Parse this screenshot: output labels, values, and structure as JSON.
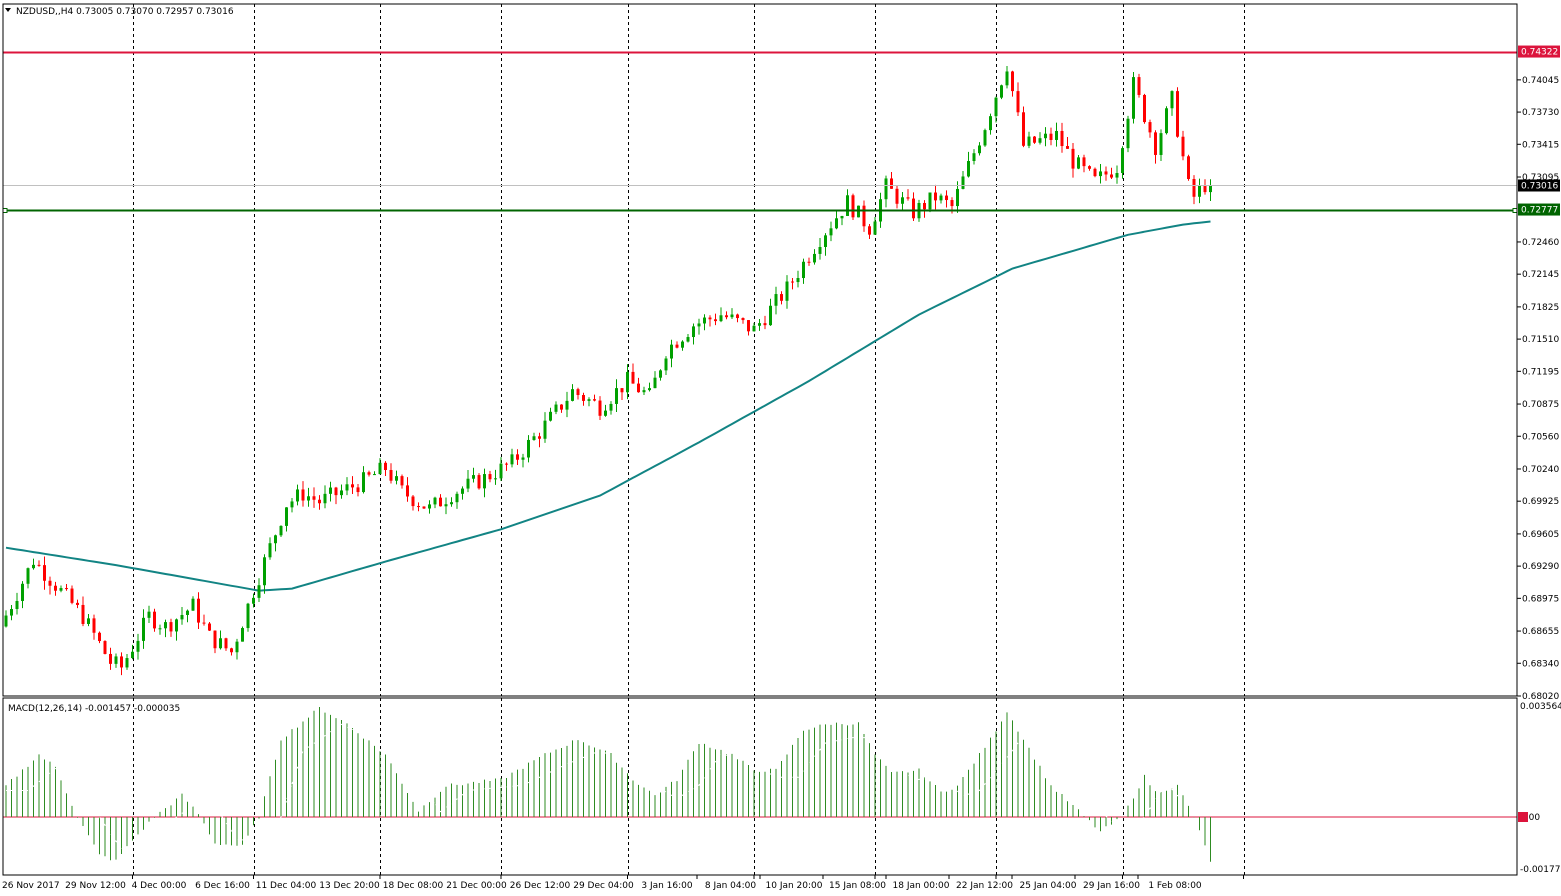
{
  "header": {
    "symbol_line": "NZDUSD,,H4  0.73005 0.73070 0.72957 0.73016"
  },
  "macd_header": "MACD(12,26,14) -0.001457 -0.000035",
  "colors": {
    "bull_candle": "#00a000",
    "bear_candle": "#ff0000",
    "ma_line": "#128484",
    "resistance_line": "#dc143c",
    "support_line": "#006400",
    "macd_hist": "#2e8b22",
    "macd_signal": "#dc143c",
    "grid": "#000000"
  },
  "chart_data": {
    "type": "candlestick",
    "symbol": "NZDUSD",
    "timeframe": "H4",
    "ylim": [
      0.6802,
      0.7465
    ],
    "y_ticks": [
      "0.74045",
      "0.73730",
      "0.73415",
      "0.73095",
      "0.72460",
      "0.72145",
      "0.71825",
      "0.71510",
      "0.71195",
      "0.70875",
      "0.70560",
      "0.70240",
      "0.69925",
      "0.69605",
      "0.69290",
      "0.68975",
      "0.68655",
      "0.68340",
      "0.68020"
    ],
    "x_ticks": [
      "26 Nov 2017",
      "29 Nov 12:00",
      "4 Dec 00:00",
      "6 Dec 16:00",
      "11 Dec 04:00",
      "13 Dec 20:00",
      "18 Dec 08:00",
      "21 Dec 00:00",
      "26 Dec 12:00",
      "29 Dec 04:00",
      "3 Jan 16:00",
      "8 Jan 04:00",
      "10 Jan 20:00",
      "15 Jan 08:00",
      "18 Jan 00:00",
      "22 Jan 12:00",
      "25 Jan 04:00",
      "29 Jan 16:00",
      "1 Feb 08:00"
    ],
    "n_bars": 220,
    "vertical_grid_bars": [
      23,
      45,
      68,
      90,
      113,
      136,
      158,
      180,
      203,
      225
    ],
    "price_path": [
      [
        0,
        0.687
      ],
      [
        6,
        0.6935
      ],
      [
        15,
        0.688
      ],
      [
        20,
        0.6835
      ],
      [
        22,
        0.683
      ],
      [
        27,
        0.688
      ],
      [
        30,
        0.687
      ],
      [
        35,
        0.689
      ],
      [
        38,
        0.686
      ],
      [
        42,
        0.6845
      ],
      [
        46,
        0.6905
      ],
      [
        52,
        0.699
      ],
      [
        55,
        0.7
      ],
      [
        58,
        0.6992
      ],
      [
        66,
        0.7012
      ],
      [
        70,
        0.7025
      ],
      [
        73,
        0.7002
      ],
      [
        78,
        0.6985
      ],
      [
        82,
        0.7
      ],
      [
        88,
        0.7015
      ],
      [
        93,
        0.703
      ],
      [
        98,
        0.706
      ],
      [
        104,
        0.71
      ],
      [
        109,
        0.7085
      ],
      [
        114,
        0.711
      ],
      [
        118,
        0.7095
      ],
      [
        121,
        0.714
      ],
      [
        126,
        0.7165
      ],
      [
        131,
        0.7175
      ],
      [
        137,
        0.716
      ],
      [
        143,
        0.72
      ],
      [
        149,
        0.725
      ],
      [
        154,
        0.7285
      ],
      [
        158,
        0.726
      ],
      [
        161,
        0.73
      ],
      [
        166,
        0.7275
      ],
      [
        170,
        0.729
      ],
      [
        173,
        0.728
      ],
      [
        176,
        0.732
      ],
      [
        179,
        0.736
      ],
      [
        183,
        0.742
      ],
      [
        186,
        0.734
      ],
      [
        192,
        0.735
      ],
      [
        195,
        0.7325
      ],
      [
        199,
        0.7305
      ],
      [
        203,
        0.732
      ],
      [
        206,
        0.74
      ],
      [
        210,
        0.734
      ],
      [
        213,
        0.7385
      ],
      [
        216,
        0.73
      ],
      [
        217,
        0.729
      ],
      [
        219,
        0.7302
      ]
    ],
    "ma_path": [
      [
        0,
        0.6947
      ],
      [
        20,
        0.693
      ],
      [
        46,
        0.6905
      ],
      [
        52,
        0.6907
      ],
      [
        70,
        0.6935
      ],
      [
        90,
        0.6965
      ],
      [
        108,
        0.6998
      ],
      [
        126,
        0.705
      ],
      [
        146,
        0.711
      ],
      [
        166,
        0.7175
      ],
      [
        183,
        0.722
      ],
      [
        204,
        0.7253
      ],
      [
        214,
        0.7263
      ],
      [
        219,
        0.7266
      ]
    ],
    "horizontal_levels": [
      {
        "value": 0.74322,
        "label": "0.74322",
        "role": "resistance"
      },
      {
        "value": 0.72777,
        "label": "0.72777",
        "role": "support"
      }
    ],
    "current_price": {
      "value": 0.73016,
      "label": "0.73016"
    },
    "macd": {
      "params": "12,26,14",
      "ylim": [
        -0.001778,
        0.003564
      ],
      "y_ticks": [
        "0.003564",
        "0.00",
        "-0.001778"
      ],
      "hist_path": [
        [
          0,
          0.001
        ],
        [
          6,
          0.002
        ],
        [
          9,
          0.0016
        ],
        [
          13,
          0.0
        ],
        [
          17,
          -0.0013
        ],
        [
          20,
          -0.0015
        ],
        [
          23,
          -0.0008
        ],
        [
          27,
          0.0
        ],
        [
          32,
          0.0007
        ],
        [
          35,
          0.0001
        ],
        [
          38,
          -0.0009
        ],
        [
          43,
          -0.001
        ],
        [
          46,
          0.0
        ],
        [
          50,
          0.0025
        ],
        [
          57,
          0.0035
        ],
        [
          62,
          0.003
        ],
        [
          69,
          0.002
        ],
        [
          75,
          0.0002
        ],
        [
          80,
          0.001
        ],
        [
          90,
          0.0012
        ],
        [
          98,
          0.002
        ],
        [
          104,
          0.0025
        ],
        [
          110,
          0.002
        ],
        [
          114,
          0.0012
        ],
        [
          118,
          0.0007
        ],
        [
          122,
          0.0012
        ],
        [
          126,
          0.0024
        ],
        [
          132,
          0.002
        ],
        [
          136,
          0.0015
        ],
        [
          140,
          0.0015
        ],
        [
          145,
          0.0028
        ],
        [
          150,
          0.003
        ],
        [
          155,
          0.003
        ],
        [
          158,
          0.002
        ],
        [
          161,
          0.0014
        ],
        [
          166,
          0.0015
        ],
        [
          170,
          0.0008
        ],
        [
          173,
          0.001
        ],
        [
          179,
          0.0025
        ],
        [
          182,
          0.0034
        ],
        [
          186,
          0.0022
        ],
        [
          190,
          0.001
        ],
        [
          195,
          0.0002
        ],
        [
          199,
          -0.0005
        ],
        [
          203,
          0.0
        ],
        [
          207,
          0.0013
        ],
        [
          209,
          0.0008
        ],
        [
          213,
          0.001
        ],
        [
          216,
          0.0
        ],
        [
          219,
          -0.0015
        ]
      ]
    }
  }
}
